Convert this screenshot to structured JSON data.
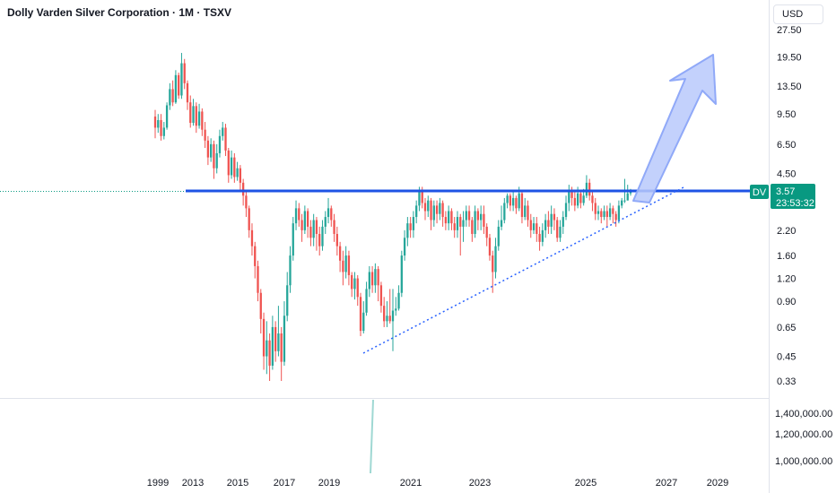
{
  "header": {
    "title": "Dolly Varden Silver Corporation · 1M · TSXV",
    "currency": "USD"
  },
  "colors": {
    "up": "#26a69a",
    "down": "#ef5350",
    "resistance": "#1e53e5",
    "trendline": "#2962ff",
    "arrow_fill": "#b9c9fb",
    "arrow_stroke": "#90a9f8",
    "price_tag": "#089981",
    "volume": "#9fd8d3"
  },
  "price_scale": {
    "labels": [
      "27.50",
      "19.50",
      "13.50",
      "9.50",
      "6.50",
      "4.50",
      "2.20",
      "1.60",
      "1.20",
      "0.90",
      "0.65",
      "0.45",
      "0.33"
    ]
  },
  "volume_scale": {
    "labels": [
      "1,400,000.00",
      "1,200,000.00",
      "1,000,000.00"
    ]
  },
  "time_scale": {
    "labels": [
      "1999",
      "2013",
      "2015",
      "2017",
      "2019",
      "2021",
      "2023",
      "2025",
      "2027",
      "2029"
    ]
  },
  "price_tag": {
    "symbol": "DV",
    "price": "3.57",
    "countdown": "23:53:32"
  },
  "chart_data": {
    "type": "candlestick",
    "title": "Dolly Varden Silver Corporation · 1M · TSXV",
    "y_scale": "log",
    "ylim": [
      0.3,
      30
    ],
    "last_price": 3.57,
    "key_levels": [
      {
        "type": "horizontal",
        "value": 3.57
      },
      {
        "type": "trendline",
        "from": [
          "2020",
          0.47
        ],
        "to": [
          "2027.5",
          3.9
        ]
      }
    ],
    "projection": {
      "type": "arrow",
      "from": [
        "2026",
        3.6
      ],
      "to": [
        "2028.5",
        20
      ]
    },
    "grid": false,
    "candles": [
      [
        9.2,
        8.0,
        10.0,
        7.0
      ],
      [
        8.0,
        8.8,
        9.5,
        7.5
      ],
      [
        8.8,
        7.2,
        9.5,
        6.8
      ],
      [
        7.2,
        8.0,
        8.6,
        6.9
      ],
      [
        8.0,
        10.6,
        11.0,
        7.8
      ],
      [
        10.6,
        13.0,
        14.0,
        10.0
      ],
      [
        13.0,
        11.0,
        14.5,
        10.5
      ],
      [
        11.0,
        15.5,
        16.5,
        10.8
      ],
      [
        15.5,
        12.0,
        16.0,
        11.5
      ],
      [
        12.0,
        18.0,
        20.5,
        11.5
      ],
      [
        18.0,
        14.0,
        19.0,
        13.0
      ],
      [
        14.0,
        11.0,
        14.5,
        10.0
      ],
      [
        11.0,
        8.5,
        12.0,
        8.0
      ],
      [
        8.5,
        10.5,
        11.5,
        8.2
      ],
      [
        10.5,
        8.2,
        11.0,
        7.5
      ],
      [
        8.2,
        9.8,
        10.8,
        7.9
      ],
      [
        9.8,
        7.8,
        10.2,
        7.2
      ],
      [
        7.8,
        6.8,
        8.6,
        6.2
      ],
      [
        6.8,
        5.5,
        7.2,
        5.0
      ],
      [
        5.5,
        6.5,
        7.0,
        5.2
      ],
      [
        6.5,
        4.8,
        6.8,
        4.2
      ],
      [
        4.8,
        5.8,
        6.5,
        4.5
      ],
      [
        5.8,
        7.2,
        7.8,
        5.5
      ],
      [
        7.2,
        8.0,
        8.6,
        6.8
      ],
      [
        8.0,
        6.0,
        8.4,
        5.6
      ],
      [
        6.0,
        4.4,
        6.2,
        4.0
      ],
      [
        4.4,
        5.5,
        6.0,
        4.2
      ],
      [
        5.5,
        4.3,
        5.8,
        4.0
      ],
      [
        4.3,
        4.8,
        5.2,
        4.1
      ],
      [
        4.8,
        4.0,
        5.0,
        3.6
      ],
      [
        4.0,
        3.4,
        4.2,
        3.0
      ],
      [
        3.4,
        2.9,
        3.6,
        2.6
      ],
      [
        2.9,
        2.2,
        3.0,
        2.0
      ],
      [
        2.2,
        1.8,
        2.4,
        1.6
      ],
      [
        1.8,
        1.4,
        1.9,
        1.2
      ],
      [
        1.4,
        1.0,
        1.5,
        0.9
      ],
      [
        1.0,
        0.72,
        1.05,
        0.6
      ],
      [
        0.72,
        0.45,
        0.78,
        0.38
      ],
      [
        0.45,
        0.55,
        0.7,
        0.36
      ],
      [
        0.55,
        0.4,
        0.6,
        0.33
      ],
      [
        0.4,
        0.65,
        0.75,
        0.38
      ],
      [
        0.65,
        0.48,
        0.7,
        0.42
      ],
      [
        0.48,
        0.6,
        0.85,
        0.45
      ],
      [
        0.6,
        0.42,
        0.65,
        0.33
      ],
      [
        0.42,
        0.75,
        0.9,
        0.4
      ],
      [
        0.75,
        1.1,
        1.3,
        0.7
      ],
      [
        1.1,
        1.6,
        1.8,
        1.0
      ],
      [
        1.6,
        2.4,
        2.6,
        1.5
      ],
      [
        2.4,
        2.9,
        3.2,
        2.2
      ],
      [
        2.9,
        2.5,
        3.1,
        2.3
      ],
      [
        2.5,
        2.2,
        2.7,
        1.9
      ],
      [
        2.2,
        2.8,
        3.0,
        2.1
      ],
      [
        2.8,
        2.3,
        2.9,
        2.0
      ],
      [
        2.3,
        2.0,
        2.5,
        1.8
      ],
      [
        2.0,
        2.5,
        2.7,
        1.8
      ],
      [
        2.5,
        2.1,
        2.6,
        1.7
      ],
      [
        2.1,
        1.8,
        2.3,
        1.6
      ],
      [
        1.8,
        2.3,
        2.5,
        1.7
      ],
      [
        2.3,
        2.6,
        2.8,
        2.1
      ],
      [
        2.6,
        2.9,
        3.3,
        2.4
      ],
      [
        2.9,
        2.5,
        3.0,
        2.3
      ],
      [
        2.5,
        2.1,
        2.7,
        1.9
      ],
      [
        2.1,
        1.8,
        2.3,
        1.6
      ],
      [
        1.8,
        1.5,
        1.9,
        1.3
      ],
      [
        1.5,
        1.3,
        1.7,
        1.1
      ],
      [
        1.3,
        1.6,
        1.8,
        1.2
      ],
      [
        1.6,
        1.25,
        1.7,
        1.1
      ],
      [
        1.25,
        1.05,
        1.3,
        0.95
      ],
      [
        1.05,
        1.2,
        1.3,
        0.92
      ],
      [
        1.2,
        0.95,
        1.25,
        0.85
      ],
      [
        0.95,
        0.62,
        1.0,
        0.58
      ],
      [
        0.62,
        0.78,
        0.9,
        0.6
      ],
      [
        0.78,
        1.05,
        1.15,
        0.75
      ],
      [
        1.05,
        1.3,
        1.4,
        0.95
      ],
      [
        1.3,
        1.1,
        1.4,
        1.0
      ],
      [
        1.1,
        1.35,
        1.45,
        1.0
      ],
      [
        1.35,
        1.1,
        1.4,
        0.9
      ],
      [
        1.1,
        0.85,
        1.15,
        0.78
      ],
      [
        0.85,
        0.7,
        0.95,
        0.65
      ],
      [
        0.7,
        0.75,
        0.9,
        0.65
      ],
      [
        0.75,
        0.7,
        1.05,
        0.68
      ],
      [
        0.7,
        0.8,
        1.05,
        0.48
      ],
      [
        0.8,
        0.82,
        0.95,
        0.75
      ],
      [
        0.82,
        1.0,
        1.1,
        0.8
      ],
      [
        1.0,
        1.6,
        1.7,
        0.95
      ],
      [
        1.6,
        2.0,
        2.2,
        1.5
      ],
      [
        2.0,
        2.4,
        2.6,
        1.8
      ],
      [
        2.4,
        2.2,
        2.6,
        2.0
      ],
      [
        2.2,
        2.6,
        2.8,
        2.0
      ],
      [
        2.6,
        3.0,
        3.2,
        2.4
      ],
      [
        3.0,
        3.6,
        3.8,
        2.8
      ],
      [
        3.6,
        3.1,
        3.8,
        2.9
      ],
      [
        3.1,
        2.8,
        3.3,
        2.5
      ],
      [
        2.8,
        3.2,
        3.4,
        2.6
      ],
      [
        3.2,
        2.5,
        3.3,
        2.2
      ],
      [
        2.5,
        3.0,
        3.2,
        2.3
      ],
      [
        3.0,
        2.7,
        3.2,
        2.4
      ],
      [
        2.7,
        3.1,
        3.3,
        2.5
      ],
      [
        3.1,
        2.6,
        3.2,
        2.3
      ],
      [
        2.6,
        2.4,
        2.8,
        2.2
      ],
      [
        2.4,
        2.8,
        3.0,
        2.2
      ],
      [
        2.8,
        2.4,
        2.9,
        2.2
      ],
      [
        2.4,
        2.2,
        2.6,
        2.0
      ],
      [
        2.2,
        2.6,
        2.8,
        2.0
      ],
      [
        2.6,
        2.3,
        2.7,
        1.6
      ],
      [
        2.3,
        2.5,
        2.8,
        1.9
      ],
      [
        2.5,
        2.8,
        3.0,
        2.3
      ],
      [
        2.8,
        2.5,
        3.0,
        2.3
      ],
      [
        2.5,
        2.1,
        2.6,
        1.9
      ],
      [
        2.1,
        2.8,
        3.0,
        2.0
      ],
      [
        2.8,
        2.5,
        2.9,
        2.2
      ],
      [
        2.5,
        2.7,
        3.0,
        2.2
      ],
      [
        2.7,
        2.3,
        3.0,
        2.1
      ],
      [
        2.3,
        2.0,
        2.4,
        1.8
      ],
      [
        2.0,
        1.6,
        2.1,
        1.5
      ],
      [
        1.6,
        1.3,
        1.7,
        1.0
      ],
      [
        1.3,
        1.8,
        2.0,
        1.2
      ],
      [
        1.8,
        2.3,
        2.5,
        1.7
      ],
      [
        2.3,
        2.5,
        3.0,
        2.2
      ],
      [
        2.5,
        3.1,
        3.3,
        2.4
      ],
      [
        3.1,
        3.4,
        3.5,
        2.9
      ],
      [
        3.4,
        3.0,
        3.5,
        2.8
      ],
      [
        3.0,
        3.3,
        3.6,
        2.8
      ],
      [
        3.3,
        2.9,
        3.4,
        2.7
      ],
      [
        2.9,
        3.5,
        3.8,
        2.8
      ],
      [
        3.5,
        2.6,
        3.6,
        2.4
      ],
      [
        2.6,
        3.0,
        3.3,
        2.5
      ],
      [
        3.0,
        2.5,
        3.2,
        2.3
      ],
      [
        2.5,
        2.2,
        2.7,
        2.0
      ],
      [
        2.2,
        2.4,
        2.6,
        2.1
      ],
      [
        2.4,
        2.1,
        2.6,
        1.9
      ],
      [
        2.1,
        1.9,
        2.3,
        1.7
      ],
      [
        1.9,
        2.2,
        2.4,
        1.8
      ],
      [
        2.2,
        2.5,
        2.7,
        2.0
      ],
      [
        2.5,
        2.3,
        2.8,
        2.1
      ],
      [
        2.3,
        2.7,
        3.0,
        2.1
      ],
      [
        2.7,
        2.5,
        2.9,
        2.2
      ],
      [
        2.5,
        2.0,
        2.6,
        1.9
      ],
      [
        2.0,
        2.3,
        2.5,
        1.9
      ],
      [
        2.3,
        2.6,
        2.8,
        2.1
      ],
      [
        2.6,
        3.1,
        3.4,
        2.5
      ],
      [
        3.1,
        3.6,
        3.9,
        2.8
      ],
      [
        3.6,
        3.3,
        3.8,
        3.0
      ],
      [
        3.3,
        3.0,
        3.6,
        2.8
      ],
      [
        3.0,
        3.5,
        3.8,
        2.9
      ],
      [
        3.5,
        3.1,
        3.6,
        2.9
      ],
      [
        3.1,
        3.4,
        3.7,
        3.0
      ],
      [
        3.4,
        4.0,
        4.4,
        3.3
      ],
      [
        4.0,
        3.4,
        4.2,
        3.2
      ],
      [
        3.4,
        3.1,
        3.6,
        2.8
      ],
      [
        3.1,
        2.7,
        3.3,
        2.5
      ],
      [
        2.7,
        2.8,
        3.0,
        2.5
      ],
      [
        2.8,
        2.6,
        2.9,
        2.4
      ],
      [
        2.6,
        2.8,
        3.0,
        2.5
      ],
      [
        2.8,
        2.6,
        3.0,
        2.3
      ],
      [
        2.6,
        2.9,
        3.1,
        2.5
      ],
      [
        2.9,
        2.7,
        3.0,
        2.4
      ],
      [
        2.7,
        2.5,
        2.8,
        2.3
      ],
      [
        2.5,
        3.0,
        3.2,
        2.4
      ],
      [
        3.0,
        3.2,
        3.3,
        2.9
      ],
      [
        3.2,
        3.2,
        4.2,
        3.1
      ],
      [
        3.2,
        3.5,
        3.9,
        3.2
      ],
      [
        3.5,
        3.57,
        3.7,
        3.4
      ]
    ]
  }
}
